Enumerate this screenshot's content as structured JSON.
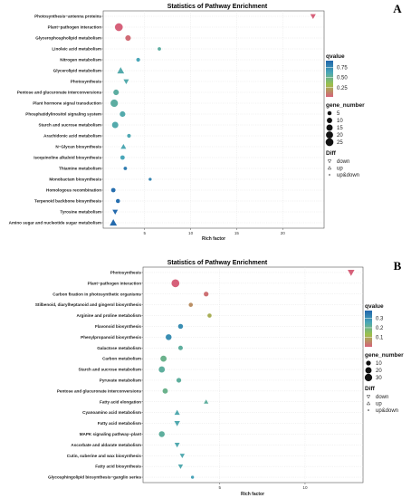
{
  "chart_data": [
    {
      "type": "scatter",
      "panel": "A",
      "title": "Statistics of Pathway Enrichment",
      "xlabel": "Rich factor",
      "ylabel": "",
      "xlim": [
        0.5,
        24.5
      ],
      "xticks": [
        5,
        10,
        15,
        20
      ],
      "grid": true,
      "legend_position": "right",
      "qvalue_legend": {
        "title": "qvalue",
        "ticks": [
          0.75,
          0.5,
          0.25
        ],
        "range": [
          0.02,
          0.92
        ]
      },
      "size_legend": {
        "title": "gene_number",
        "values": [
          5,
          10,
          15,
          20,
          25
        ]
      },
      "diff_legend": {
        "title": "Diff",
        "entries": [
          "down",
          "up",
          "up&down"
        ]
      },
      "points": [
        {
          "pathway": "Photosynthesis−antenna proteins",
          "rich": 23.3,
          "qvalue": 0.02,
          "gene_number": 6,
          "diff": "down"
        },
        {
          "pathway": "Plant−pathogen interaction",
          "rich": 2.2,
          "qvalue": 0.02,
          "gene_number": 25,
          "diff": "up&down"
        },
        {
          "pathway": "Glycerophospholipid metabolism",
          "rich": 3.2,
          "qvalue": 0.05,
          "gene_number": 11,
          "diff": "up&down"
        },
        {
          "pathway": "Linoleic acid metabolism",
          "rich": 6.6,
          "qvalue": 0.55,
          "gene_number": 3,
          "diff": "up&down"
        },
        {
          "pathway": "Nitrogen metabolism",
          "rich": 4.3,
          "qvalue": 0.62,
          "gene_number": 4,
          "diff": "up&down"
        },
        {
          "pathway": "Glycerolipid metabolism",
          "rich": 2.4,
          "qvalue": 0.58,
          "gene_number": 11,
          "diff": "up"
        },
        {
          "pathway": "Photosynthesis",
          "rich": 3.0,
          "qvalue": 0.58,
          "gene_number": 6,
          "diff": "down"
        },
        {
          "pathway": "Pentose and glucuronate interconversions",
          "rich": 1.9,
          "qvalue": 0.55,
          "gene_number": 11,
          "diff": "up&down"
        },
        {
          "pathway": "Plant hormone signal transduction",
          "rich": 1.7,
          "qvalue": 0.55,
          "gene_number": 22,
          "diff": "up&down"
        },
        {
          "pathway": "Phosphatidylinositol signaling system",
          "rich": 2.6,
          "qvalue": 0.58,
          "gene_number": 11,
          "diff": "up&down"
        },
        {
          "pathway": "Starch and sucrose metabolism",
          "rich": 1.8,
          "qvalue": 0.58,
          "gene_number": 15,
          "diff": "up&down"
        },
        {
          "pathway": "Arachidonic acid metabolism",
          "rich": 3.3,
          "qvalue": 0.6,
          "gene_number": 4,
          "diff": "up&down"
        },
        {
          "pathway": "N−Glycan biosynthesis",
          "rich": 2.7,
          "qvalue": 0.6,
          "gene_number": 6,
          "diff": "up"
        },
        {
          "pathway": "Isoquinoline alkaloid biosynthesis",
          "rich": 2.6,
          "qvalue": 0.62,
          "gene_number": 6,
          "diff": "up&down"
        },
        {
          "pathway": "Thiamine metabolism",
          "rich": 2.9,
          "qvalue": 0.82,
          "gene_number": 3,
          "diff": "up&down"
        },
        {
          "pathway": "Monobactam biosynthesis",
          "rich": 5.6,
          "qvalue": 0.78,
          "gene_number": 2,
          "diff": "up&down"
        },
        {
          "pathway": "Homologous recombination",
          "rich": 1.6,
          "qvalue": 0.88,
          "gene_number": 6,
          "diff": "up&down"
        },
        {
          "pathway": "Terpenoid backbone biosynthesis",
          "rich": 2.1,
          "qvalue": 0.88,
          "gene_number": 5,
          "diff": "up&down"
        },
        {
          "pathway": "Tyrosine metabolism",
          "rich": 1.8,
          "qvalue": 0.9,
          "gene_number": 6,
          "diff": "down"
        },
        {
          "pathway": "Amino sugar and nucleotide sugar metabolism",
          "rich": 1.6,
          "qvalue": 0.9,
          "gene_number": 12,
          "diff": "up"
        }
      ]
    },
    {
      "type": "scatter",
      "panel": "B",
      "title": "Statistics of Pathway Enrichment",
      "xlabel": "Rich factor",
      "ylabel": "",
      "xlim": [
        0.5,
        13.4
      ],
      "xticks": [
        5,
        10
      ],
      "grid": true,
      "legend_position": "right",
      "qvalue_legend": {
        "title": "qvalue",
        "ticks": [
          0.3,
          0.2,
          0.1
        ],
        "range": [
          0.0,
          0.38
        ]
      },
      "size_legend": {
        "title": "gene_number",
        "values": [
          10,
          20,
          30
        ]
      },
      "diff_legend": {
        "title": "Diff",
        "entries": [
          "down",
          "up",
          "up&down"
        ]
      },
      "points": [
        {
          "pathway": "Photosynthesis",
          "rich": 12.7,
          "qvalue": 0.0,
          "gene_number": 14,
          "diff": "down"
        },
        {
          "pathway": "Plant−pathogen interaction",
          "rich": 2.4,
          "qvalue": 0.0,
          "gene_number": 34,
          "diff": "up&down"
        },
        {
          "pathway": "Carbon fixation in photosynthetic organisms",
          "rich": 4.2,
          "qvalue": 0.02,
          "gene_number": 10,
          "diff": "up&down"
        },
        {
          "pathway": "Stilbenoid, diarylheptanoid and gingerol biosynthesis",
          "rich": 3.3,
          "qvalue": 0.06,
          "gene_number": 7,
          "diff": "up&down"
        },
        {
          "pathway": "Arginine and proline metabolism",
          "rich": 4.4,
          "qvalue": 0.1,
          "gene_number": 7,
          "diff": "up&down"
        },
        {
          "pathway": "Flavonoid biosynthesis",
          "rich": 2.7,
          "qvalue": 0.3,
          "gene_number": 11,
          "diff": "up&down"
        },
        {
          "pathway": "Phenylpropanoid biosynthesis",
          "rich": 2.0,
          "qvalue": 0.3,
          "gene_number": 17,
          "diff": "up&down"
        },
        {
          "pathway": "Galactose metabolism",
          "rich": 2.7,
          "qvalue": 0.22,
          "gene_number": 9,
          "diff": "up&down"
        },
        {
          "pathway": "Carbon metabolism",
          "rich": 1.7,
          "qvalue": 0.2,
          "gene_number": 19,
          "diff": "up&down"
        },
        {
          "pathway": "Starch and sucrose metabolism",
          "rich": 1.6,
          "qvalue": 0.22,
          "gene_number": 19,
          "diff": "up&down"
        },
        {
          "pathway": "Pyruvate metabolism",
          "rich": 2.6,
          "qvalue": 0.22,
          "gene_number": 10,
          "diff": "up&down"
        },
        {
          "pathway": "Pentose and glucuronate interconversions",
          "rich": 1.8,
          "qvalue": 0.2,
          "gene_number": 13,
          "diff": "up&down"
        },
        {
          "pathway": "Fatty acid elongation",
          "rich": 4.2,
          "qvalue": 0.22,
          "gene_number": 5,
          "diff": "up"
        },
        {
          "pathway": "Cyanoamino acid metabolism",
          "rich": 2.5,
          "qvalue": 0.24,
          "gene_number": 8,
          "diff": "up"
        },
        {
          "pathway": "Fatty acid metabolism",
          "rich": 2.5,
          "qvalue": 0.24,
          "gene_number": 9,
          "diff": "down"
        },
        {
          "pathway": "MAPK signaling pathway−plant",
          "rich": 1.6,
          "qvalue": 0.22,
          "gene_number": 17,
          "diff": "up&down"
        },
        {
          "pathway": "Ascorbate and aldarate metabolism",
          "rich": 2.5,
          "qvalue": 0.24,
          "gene_number": 7,
          "diff": "down"
        },
        {
          "pathway": "Cutin, suberine and wax biosynthesis",
          "rich": 2.8,
          "qvalue": 0.24,
          "gene_number": 6,
          "diff": "down"
        },
        {
          "pathway": "Fatty acid biosynthesis",
          "rich": 2.7,
          "qvalue": 0.24,
          "gene_number": 6,
          "diff": "down"
        },
        {
          "pathway": "Glycosphingolipid biosynthesis−ganglio series",
          "rich": 3.4,
          "qvalue": 0.26,
          "gene_number": 3,
          "diff": "up&down"
        }
      ]
    }
  ]
}
